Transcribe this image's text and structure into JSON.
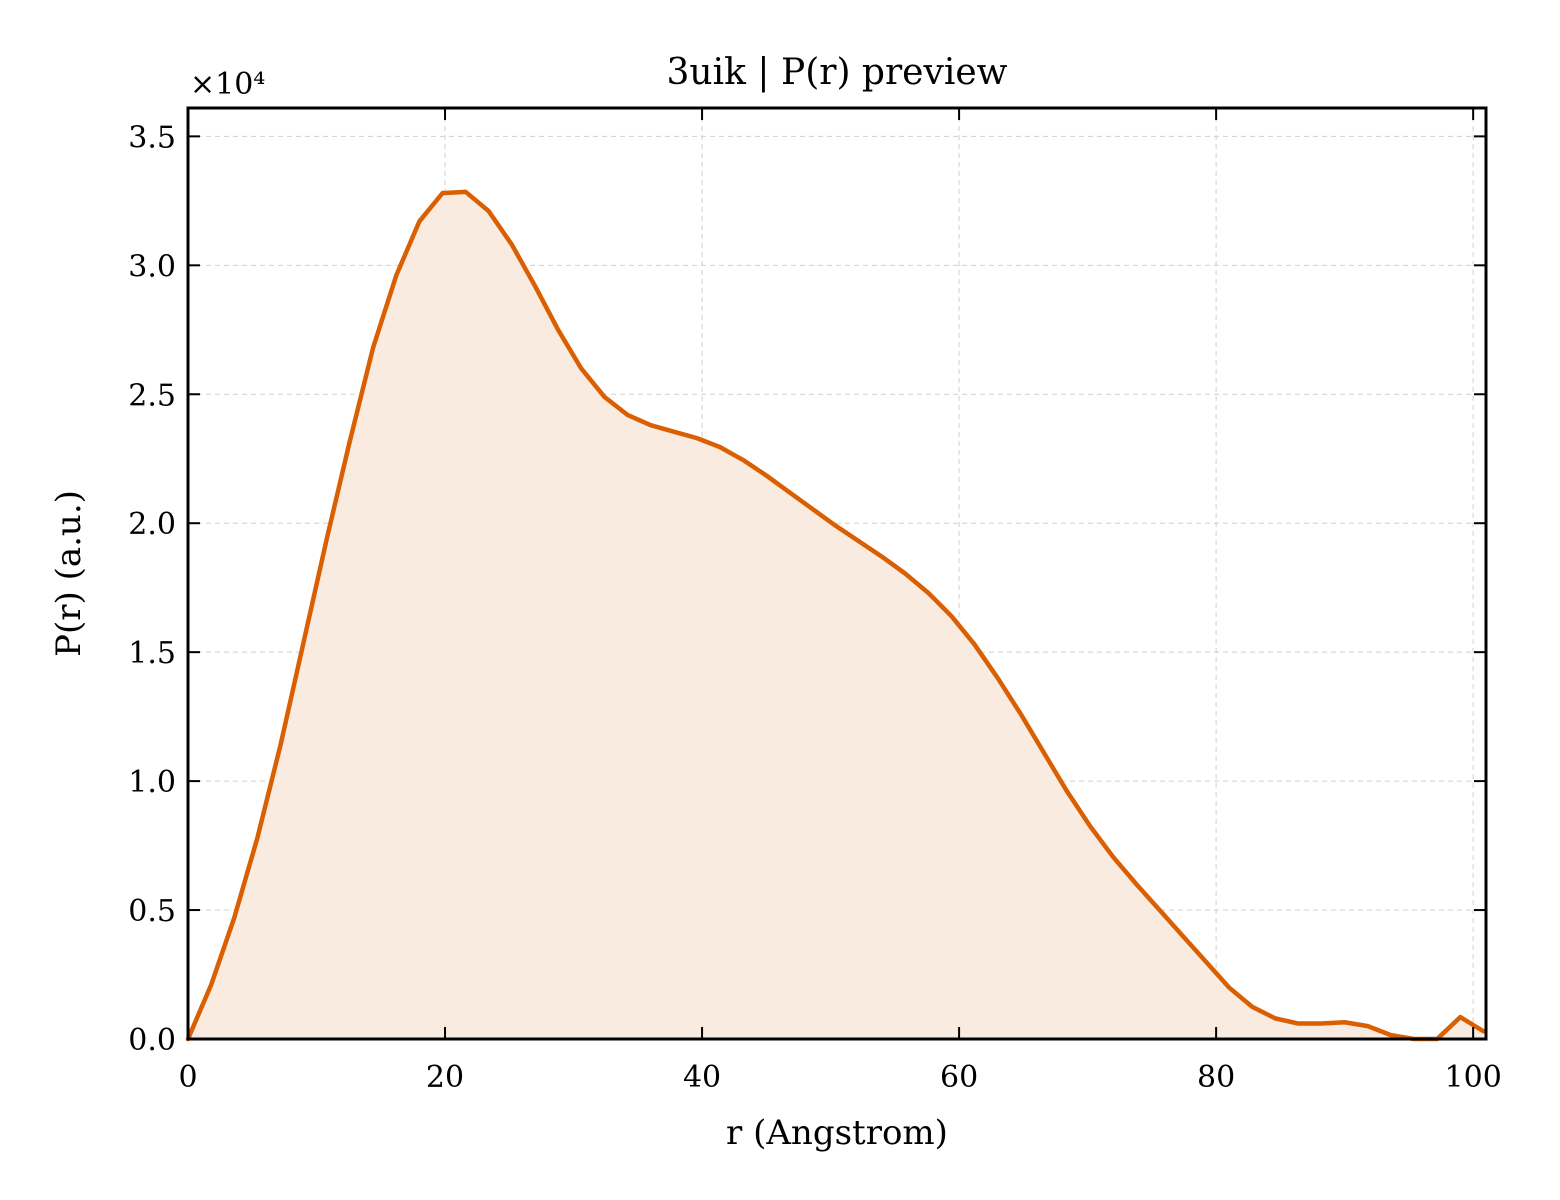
{
  "chart_data": {
    "type": "area",
    "title": "3uik | P(r) preview",
    "xlabel": "r (Angstrom)",
    "ylabel": "P(r) (a.u.)",
    "y_multiplier": "×10⁴",
    "xlim": [
      0,
      101
    ],
    "ylim": [
      0,
      3.61
    ],
    "y_scale_factor": 10000,
    "x_ticks": [
      0,
      20,
      40,
      60,
      80,
      100
    ],
    "x_tick_labels": [
      "0",
      "20",
      "40",
      "60",
      "80",
      "100"
    ],
    "y_ticks": [
      0,
      0.5,
      1.0,
      1.5,
      2.0,
      2.5,
      3.0,
      3.5
    ],
    "y_tick_labels": [
      "0.0",
      "0.5",
      "1.0",
      "1.5",
      "2.0",
      "2.5",
      "3.0",
      "3.5"
    ],
    "grid": true,
    "legend": "none",
    "colors": {
      "line": "#d95f02",
      "fill": "#f9ebe0"
    },
    "series": [
      {
        "x": [
          0,
          1.8,
          3.6,
          5.4,
          7.2,
          9.0,
          10.8,
          12.6,
          14.4,
          16.2,
          18.0,
          19.8,
          21.6,
          23.4,
          25.2,
          27.0,
          28.8,
          30.6,
          32.4,
          34.2,
          36.0,
          37.8,
          39.6,
          41.4,
          43.2,
          45.0,
          46.8,
          48.6,
          50.4,
          52.2,
          54.0,
          55.8,
          57.6,
          59.4,
          61.2,
          63.0,
          64.8,
          66.6,
          68.4,
          70.2,
          72.0,
          73.8,
          75.6,
          77.4,
          79.2,
          81.0,
          82.8,
          84.6,
          86.4,
          88.2,
          90.0,
          91.8,
          93.6,
          95.4,
          97.2,
          99.0,
          100.8
        ],
        "y": [
          0,
          0.21,
          0.47,
          0.78,
          1.14,
          1.54,
          1.94,
          2.32,
          2.68,
          2.96,
          3.17,
          3.28,
          3.285,
          3.21,
          3.08,
          2.92,
          2.75,
          2.6,
          2.49,
          2.42,
          2.38,
          2.355,
          2.33,
          2.295,
          2.245,
          2.185,
          2.12,
          2.055,
          1.99,
          1.93,
          1.87,
          1.805,
          1.73,
          1.64,
          1.53,
          1.4,
          1.26,
          1.11,
          0.96,
          0.825,
          0.705,
          0.6,
          0.5,
          0.4,
          0.3,
          0.2,
          0.125,
          0.08,
          0.06,
          0.06,
          0.065,
          0.05,
          0.015,
          0,
          0,
          0.085,
          0.03
        ]
      }
    ]
  }
}
